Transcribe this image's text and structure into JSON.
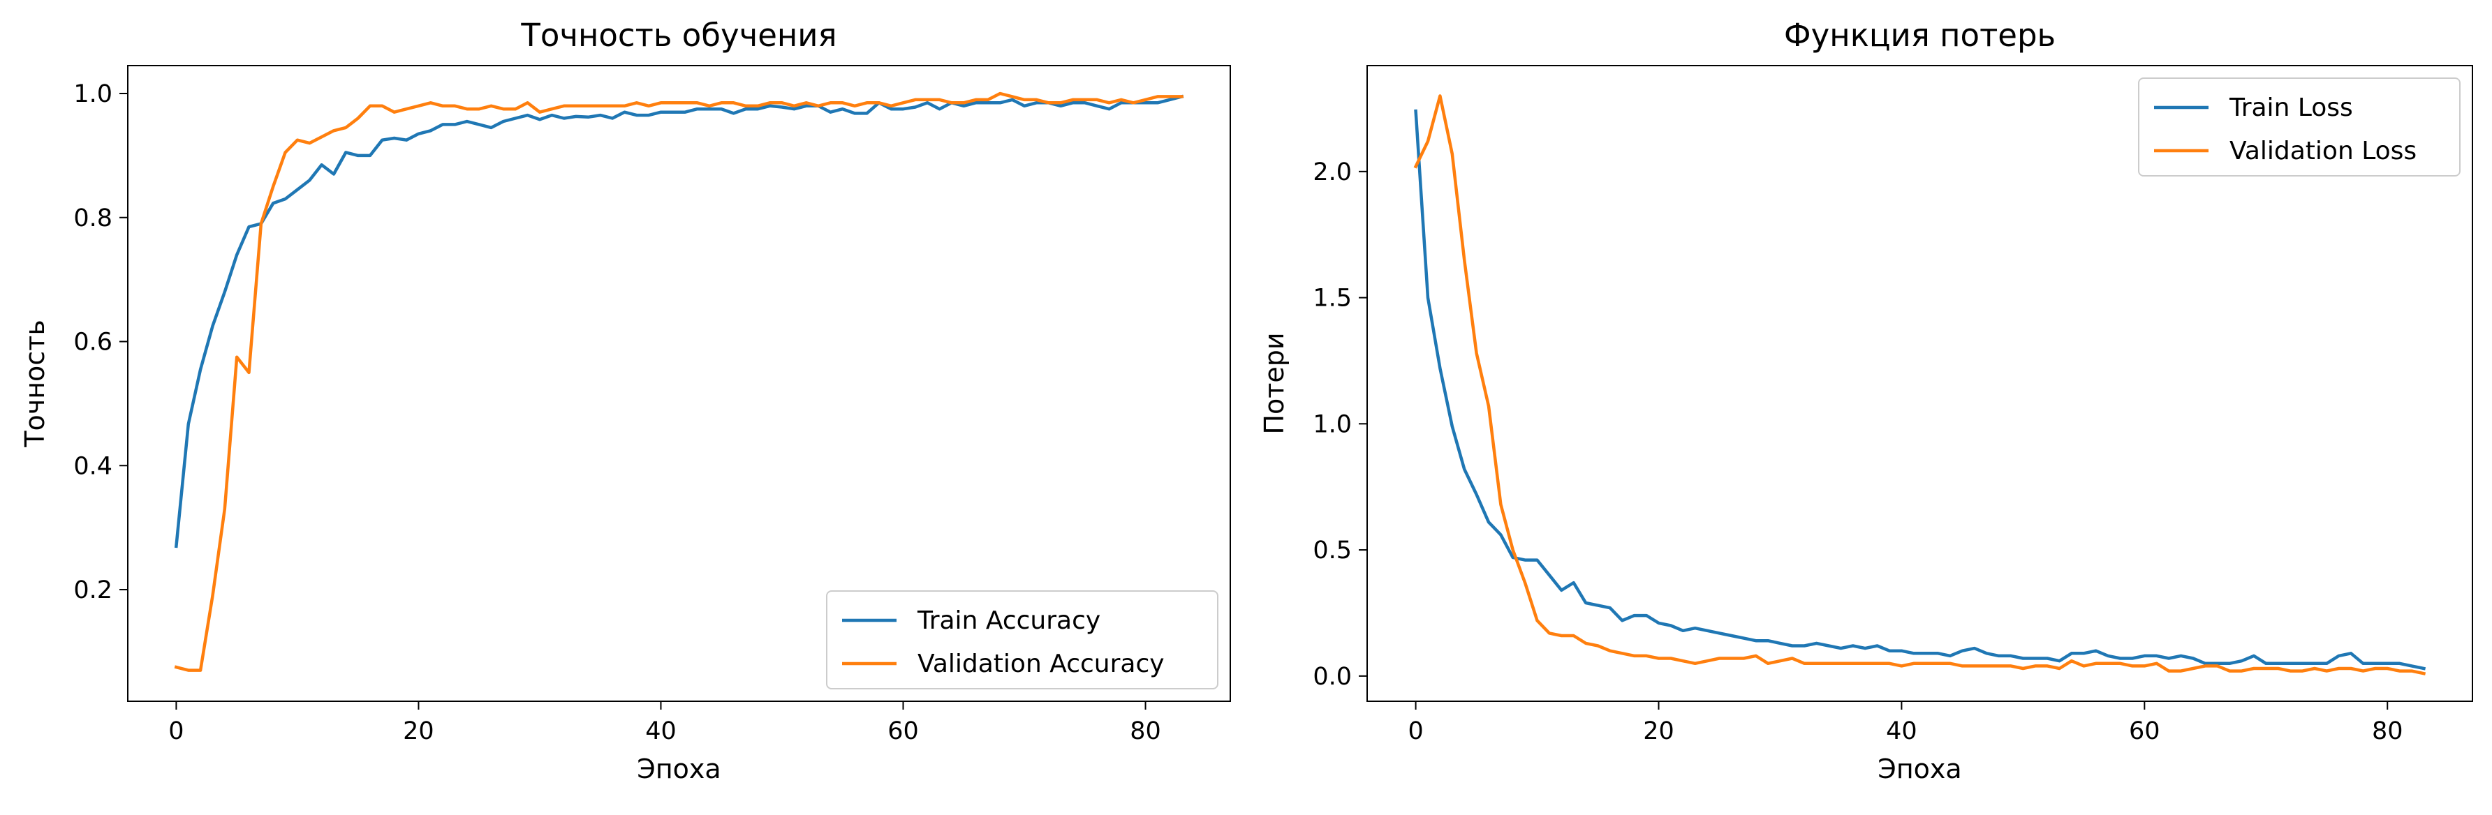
{
  "chart_data": [
    {
      "type": "line",
      "title": "Точность обучения",
      "xlabel": "Эпоха",
      "ylabel": "Точность",
      "xlim": [
        -4,
        87
      ],
      "ylim": [
        0.02,
        1.045
      ],
      "xticks": [
        0,
        20,
        40,
        60,
        80
      ],
      "yticks": [
        0.2,
        0.4,
        0.6,
        0.8,
        1.0
      ],
      "ytick_labels": [
        "0.2",
        "0.4",
        "0.6",
        "0.8",
        "1.0"
      ],
      "legend_position": "lower-right",
      "grid": false,
      "series": [
        {
          "name": "Train Accuracy",
          "color": "#1f77b4",
          "values": [
            0.27,
            0.467,
            0.555,
            0.625,
            0.68,
            0.74,
            0.785,
            0.79,
            0.823,
            0.83,
            0.845,
            0.86,
            0.885,
            0.87,
            0.905,
            0.9,
            0.9,
            0.925,
            0.928,
            0.925,
            0.935,
            0.94,
            0.95,
            0.95,
            0.955,
            0.95,
            0.945,
            0.955,
            0.96,
            0.965,
            0.958,
            0.965,
            0.96,
            0.963,
            0.962,
            0.965,
            0.96,
            0.97,
            0.965,
            0.965,
            0.97,
            0.97,
            0.97,
            0.975,
            0.975,
            0.975,
            0.968,
            0.975,
            0.975,
            0.98,
            0.978,
            0.975,
            0.98,
            0.98,
            0.97,
            0.975,
            0.968,
            0.968,
            0.985,
            0.975,
            0.975,
            0.978,
            0.985,
            0.975,
            0.985,
            0.98,
            0.985,
            0.985,
            0.985,
            0.99,
            0.98,
            0.985,
            0.985,
            0.98,
            0.985,
            0.985,
            0.98,
            0.975,
            0.985,
            0.985,
            0.985,
            0.985,
            0.99,
            0.995
          ]
        },
        {
          "name": "Validation Accuracy",
          "color": "#ff7f0e",
          "values": [
            0.075,
            0.07,
            0.07,
            0.19,
            0.33,
            0.575,
            0.55,
            0.79,
            0.85,
            0.905,
            0.925,
            0.92,
            0.93,
            0.94,
            0.945,
            0.96,
            0.98,
            0.98,
            0.97,
            0.975,
            0.98,
            0.985,
            0.98,
            0.98,
            0.975,
            0.975,
            0.98,
            0.975,
            0.975,
            0.985,
            0.97,
            0.975,
            0.98,
            0.98,
            0.98,
            0.98,
            0.98,
            0.98,
            0.985,
            0.98,
            0.985,
            0.985,
            0.985,
            0.985,
            0.98,
            0.985,
            0.985,
            0.98,
            0.98,
            0.985,
            0.985,
            0.98,
            0.985,
            0.98,
            0.985,
            0.985,
            0.98,
            0.985,
            0.985,
            0.98,
            0.985,
            0.99,
            0.99,
            0.99,
            0.985,
            0.985,
            0.99,
            0.99,
            1.0,
            0.995,
            0.99,
            0.99,
            0.985,
            0.985,
            0.99,
            0.99,
            0.99,
            0.985,
            0.99,
            0.985,
            0.99,
            0.995,
            0.995,
            0.995
          ]
        }
      ]
    },
    {
      "type": "line",
      "title": "Функция потерь",
      "xlabel": "Эпоха",
      "ylabel": "Потери",
      "xlim": [
        -4,
        87
      ],
      "ylim": [
        -0.1,
        2.42
      ],
      "xticks": [
        0,
        20,
        40,
        60,
        80
      ],
      "yticks": [
        0.0,
        0.5,
        1.0,
        1.5,
        2.0
      ],
      "ytick_labels": [
        "0.0",
        "0.5",
        "1.0",
        "1.5",
        "2.0"
      ],
      "legend_position": "upper-right",
      "grid": false,
      "series": [
        {
          "name": "Train Loss",
          "color": "#1f77b4",
          "values": [
            2.24,
            1.5,
            1.22,
            0.99,
            0.82,
            0.72,
            0.61,
            0.56,
            0.47,
            0.46,
            0.46,
            0.4,
            0.34,
            0.37,
            0.29,
            0.28,
            0.27,
            0.22,
            0.24,
            0.24,
            0.21,
            0.2,
            0.18,
            0.19,
            0.18,
            0.17,
            0.16,
            0.15,
            0.14,
            0.14,
            0.13,
            0.12,
            0.12,
            0.13,
            0.12,
            0.11,
            0.12,
            0.11,
            0.12,
            0.1,
            0.1,
            0.09,
            0.09,
            0.09,
            0.08,
            0.1,
            0.11,
            0.09,
            0.08,
            0.08,
            0.07,
            0.07,
            0.07,
            0.06,
            0.09,
            0.09,
            0.1,
            0.08,
            0.07,
            0.07,
            0.08,
            0.08,
            0.07,
            0.08,
            0.07,
            0.05,
            0.05,
            0.05,
            0.06,
            0.08,
            0.05,
            0.05,
            0.05,
            0.05,
            0.05,
            0.05,
            0.08,
            0.09,
            0.05,
            0.05,
            0.05,
            0.05,
            0.04,
            0.03
          ]
        },
        {
          "name": "Validation Loss",
          "color": "#ff7f0e",
          "values": [
            2.02,
            2.12,
            2.3,
            2.07,
            1.65,
            1.28,
            1.07,
            0.68,
            0.5,
            0.37,
            0.22,
            0.17,
            0.16,
            0.16,
            0.13,
            0.12,
            0.1,
            0.09,
            0.08,
            0.08,
            0.07,
            0.07,
            0.06,
            0.05,
            0.06,
            0.07,
            0.07,
            0.07,
            0.08,
            0.05,
            0.06,
            0.07,
            0.05,
            0.05,
            0.05,
            0.05,
            0.05,
            0.05,
            0.05,
            0.05,
            0.04,
            0.05,
            0.05,
            0.05,
            0.05,
            0.04,
            0.04,
            0.04,
            0.04,
            0.04,
            0.03,
            0.04,
            0.04,
            0.03,
            0.06,
            0.04,
            0.05,
            0.05,
            0.05,
            0.04,
            0.04,
            0.05,
            0.02,
            0.02,
            0.03,
            0.04,
            0.04,
            0.02,
            0.02,
            0.03,
            0.03,
            0.03,
            0.02,
            0.02,
            0.03,
            0.02,
            0.03,
            0.03,
            0.02,
            0.03,
            0.03,
            0.02,
            0.02,
            0.01
          ]
        }
      ]
    }
  ]
}
